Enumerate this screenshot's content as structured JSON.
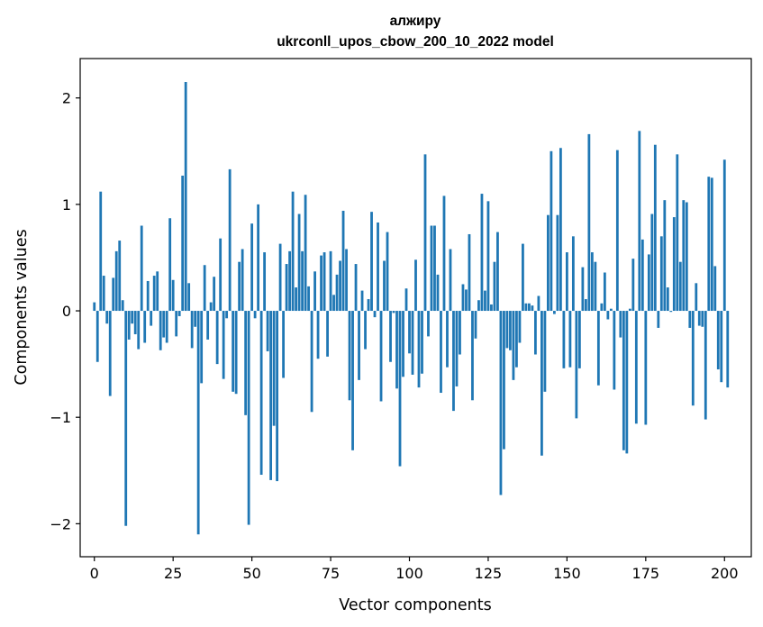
{
  "chart_data": {
    "type": "bar",
    "title": "алжиру",
    "subtitle": "ukrconll_upos_cbow_200_10_2022 model",
    "xlabel": "Vector components",
    "ylabel": "Components values",
    "xlim": [
      -4.5,
      208.5
    ],
    "ylim": [
      -2.31,
      2.37
    ],
    "xticks": [
      0,
      25,
      50,
      75,
      100,
      125,
      150,
      175,
      200
    ],
    "yticks": [
      -2,
      -1,
      0,
      1,
      2
    ],
    "ytick_labels": [
      "−2",
      "−1",
      "0",
      "1",
      "2"
    ],
    "bar_color": "#1f77b4",
    "grid": false,
    "legend": "none",
    "values": [
      0.08,
      -0.48,
      1.12,
      0.33,
      -0.12,
      -0.8,
      0.31,
      0.56,
      0.66,
      0.1,
      -2.02,
      -0.27,
      -0.12,
      -0.22,
      -0.36,
      0.8,
      -0.3,
      0.28,
      -0.14,
      0.33,
      0.37,
      -0.37,
      -0.25,
      -0.3,
      0.87,
      0.29,
      -0.24,
      -0.05,
      1.27,
      2.15,
      0.26,
      -0.35,
      -0.15,
      -2.1,
      -0.68,
      0.43,
      -0.27,
      0.08,
      0.32,
      -0.5,
      0.68,
      -0.64,
      -0.07,
      1.33,
      -0.76,
      -0.78,
      0.46,
      0.58,
      -0.98,
      -2.01,
      0.82,
      -0.07,
      1.0,
      -1.54,
      0.55,
      -0.38,
      -1.59,
      -1.08,
      -1.6,
      0.63,
      -0.63,
      0.44,
      0.56,
      1.12,
      0.22,
      0.91,
      0.56,
      1.09,
      0.23,
      -0.95,
      0.37,
      -0.45,
      0.52,
      0.55,
      -0.43,
      0.56,
      0.15,
      0.34,
      0.47,
      0.94,
      0.58,
      -0.84,
      -1.31,
      0.44,
      -0.65,
      0.19,
      -0.36,
      0.11,
      0.93,
      -0.06,
      0.83,
      -0.85,
      0.47,
      0.74,
      -0.48,
      -0.02,
      -0.73,
      -1.46,
      -0.62,
      0.21,
      -0.4,
      -0.6,
      0.48,
      -0.72,
      -0.59,
      1.47,
      -0.24,
      0.8,
      0.8,
      0.34,
      -0.77,
      1.08,
      -0.53,
      0.58,
      -0.94,
      -0.71,
      -0.41,
      0.25,
      0.2,
      0.72,
      -0.84,
      -0.26,
      0.1,
      1.1,
      0.19,
      1.03,
      0.06,
      0.46,
      0.74,
      -1.73,
      -1.3,
      -0.35,
      -0.37,
      -0.65,
      -0.53,
      -0.3,
      0.63,
      0.07,
      0.07,
      0.05,
      -0.41,
      0.14,
      -1.36,
      -0.76,
      0.9,
      1.5,
      -0.03,
      0.9,
      1.53,
      -0.54,
      0.55,
      -0.53,
      0.7,
      -1.01,
      -0.54,
      0.41,
      0.11,
      1.66,
      0.55,
      0.46,
      -0.7,
      0.07,
      0.36,
      -0.08,
      0.02,
      -0.74,
      1.51,
      -0.25,
      -1.31,
      -1.34,
      0.02,
      0.49,
      -1.06,
      1.69,
      0.67,
      -1.07,
      0.53,
      0.91,
      1.56,
      -0.16,
      0.7,
      1.04,
      0.22,
      -0.01,
      0.88,
      1.47,
      0.46,
      1.04,
      1.02,
      -0.16,
      -0.89,
      0.26,
      -0.14,
      -0.15,
      -1.02,
      1.26,
      1.25,
      0.42,
      -0.55,
      -0.67,
      1.42,
      -0.72
    ]
  }
}
